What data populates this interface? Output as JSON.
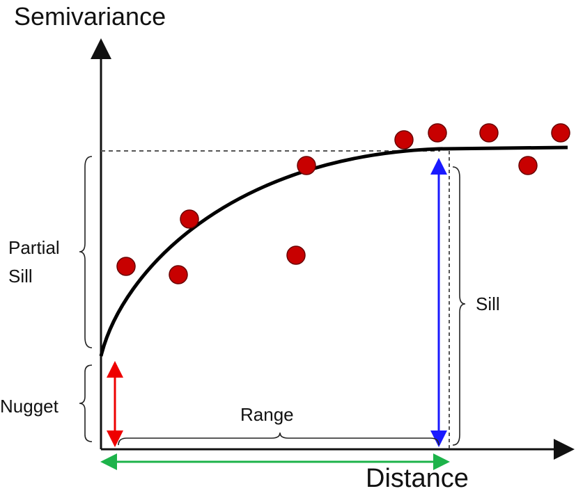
{
  "axes": {
    "y_label": "Semivariance",
    "x_label": "Distance"
  },
  "annotations": {
    "partial_sill": [
      "Partial",
      "Sill"
    ],
    "sill": "Sill",
    "nugget": "Nugget",
    "range": "Range"
  }
}
